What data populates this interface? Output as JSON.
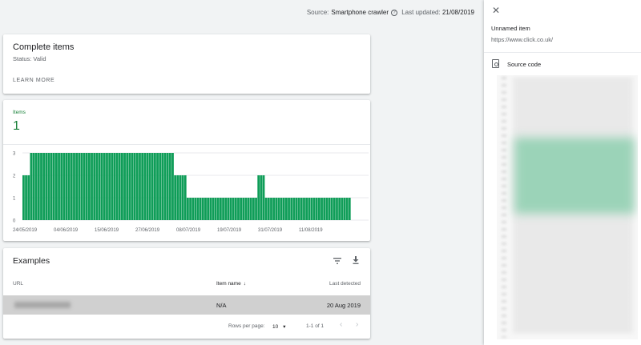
{
  "topbar": {
    "source_label": "Source:",
    "source_value": "Smartphone crawler",
    "updated_label": "Last updated:",
    "updated_value": "21/08/2019"
  },
  "summary": {
    "title": "Complete items",
    "status": "Status: Valid",
    "learn_more": "LEARN MORE"
  },
  "items_chart": {
    "label": "Items",
    "count": "1"
  },
  "chart_data": {
    "type": "bar",
    "color": "#0f9d58",
    "ylim": [
      0,
      3
    ],
    "yticks": [
      "0",
      "1",
      "2",
      "3"
    ],
    "xtick_labels": [
      "24/05/2019",
      "04/06/2019",
      "15/06/2019",
      "27/06/2019",
      "08/07/2019",
      "19/07/2019",
      "31/07/2019",
      "11/08/2019"
    ],
    "values": [
      2,
      2,
      2,
      3,
      3,
      3,
      3,
      3,
      3,
      3,
      3,
      3,
      3,
      3,
      3,
      3,
      3,
      3,
      3,
      3,
      3,
      3,
      3,
      3,
      3,
      3,
      3,
      3,
      3,
      3,
      3,
      3,
      3,
      3,
      3,
      3,
      3,
      3,
      3,
      3,
      3,
      3,
      3,
      3,
      3,
      3,
      3,
      3,
      3,
      3,
      3,
      3,
      3,
      3,
      3,
      3,
      3,
      3,
      3,
      3,
      2,
      2,
      2,
      2,
      2,
      1,
      1,
      1,
      1,
      1,
      1,
      1,
      1,
      1,
      1,
      1,
      1,
      1,
      1,
      1,
      1,
      1,
      1,
      1,
      1,
      1,
      1,
      1,
      1,
      1,
      1,
      1,
      1,
      2,
      2,
      2,
      1,
      1,
      1,
      1,
      1,
      1,
      1,
      1,
      1,
      1,
      1,
      1,
      1,
      1,
      1,
      1,
      1,
      1,
      1,
      1,
      1,
      1,
      1,
      1,
      1,
      1,
      1,
      1,
      1,
      1,
      1,
      1,
      1,
      1
    ]
  },
  "examples": {
    "title": "Examples",
    "col_url": "URL",
    "col_name": "Item name",
    "col_last": "Last detected",
    "rows": [
      {
        "name": "N/A",
        "date": "20 Aug 2019"
      }
    ],
    "rows_per_page_label": "Rows per page:",
    "rows_per_page": "10",
    "range": "1-1 of 1"
  },
  "panel": {
    "item_name": "Unnamed item",
    "item_url": "https://www.click.co.uk/",
    "source_code_label": "Source code"
  }
}
